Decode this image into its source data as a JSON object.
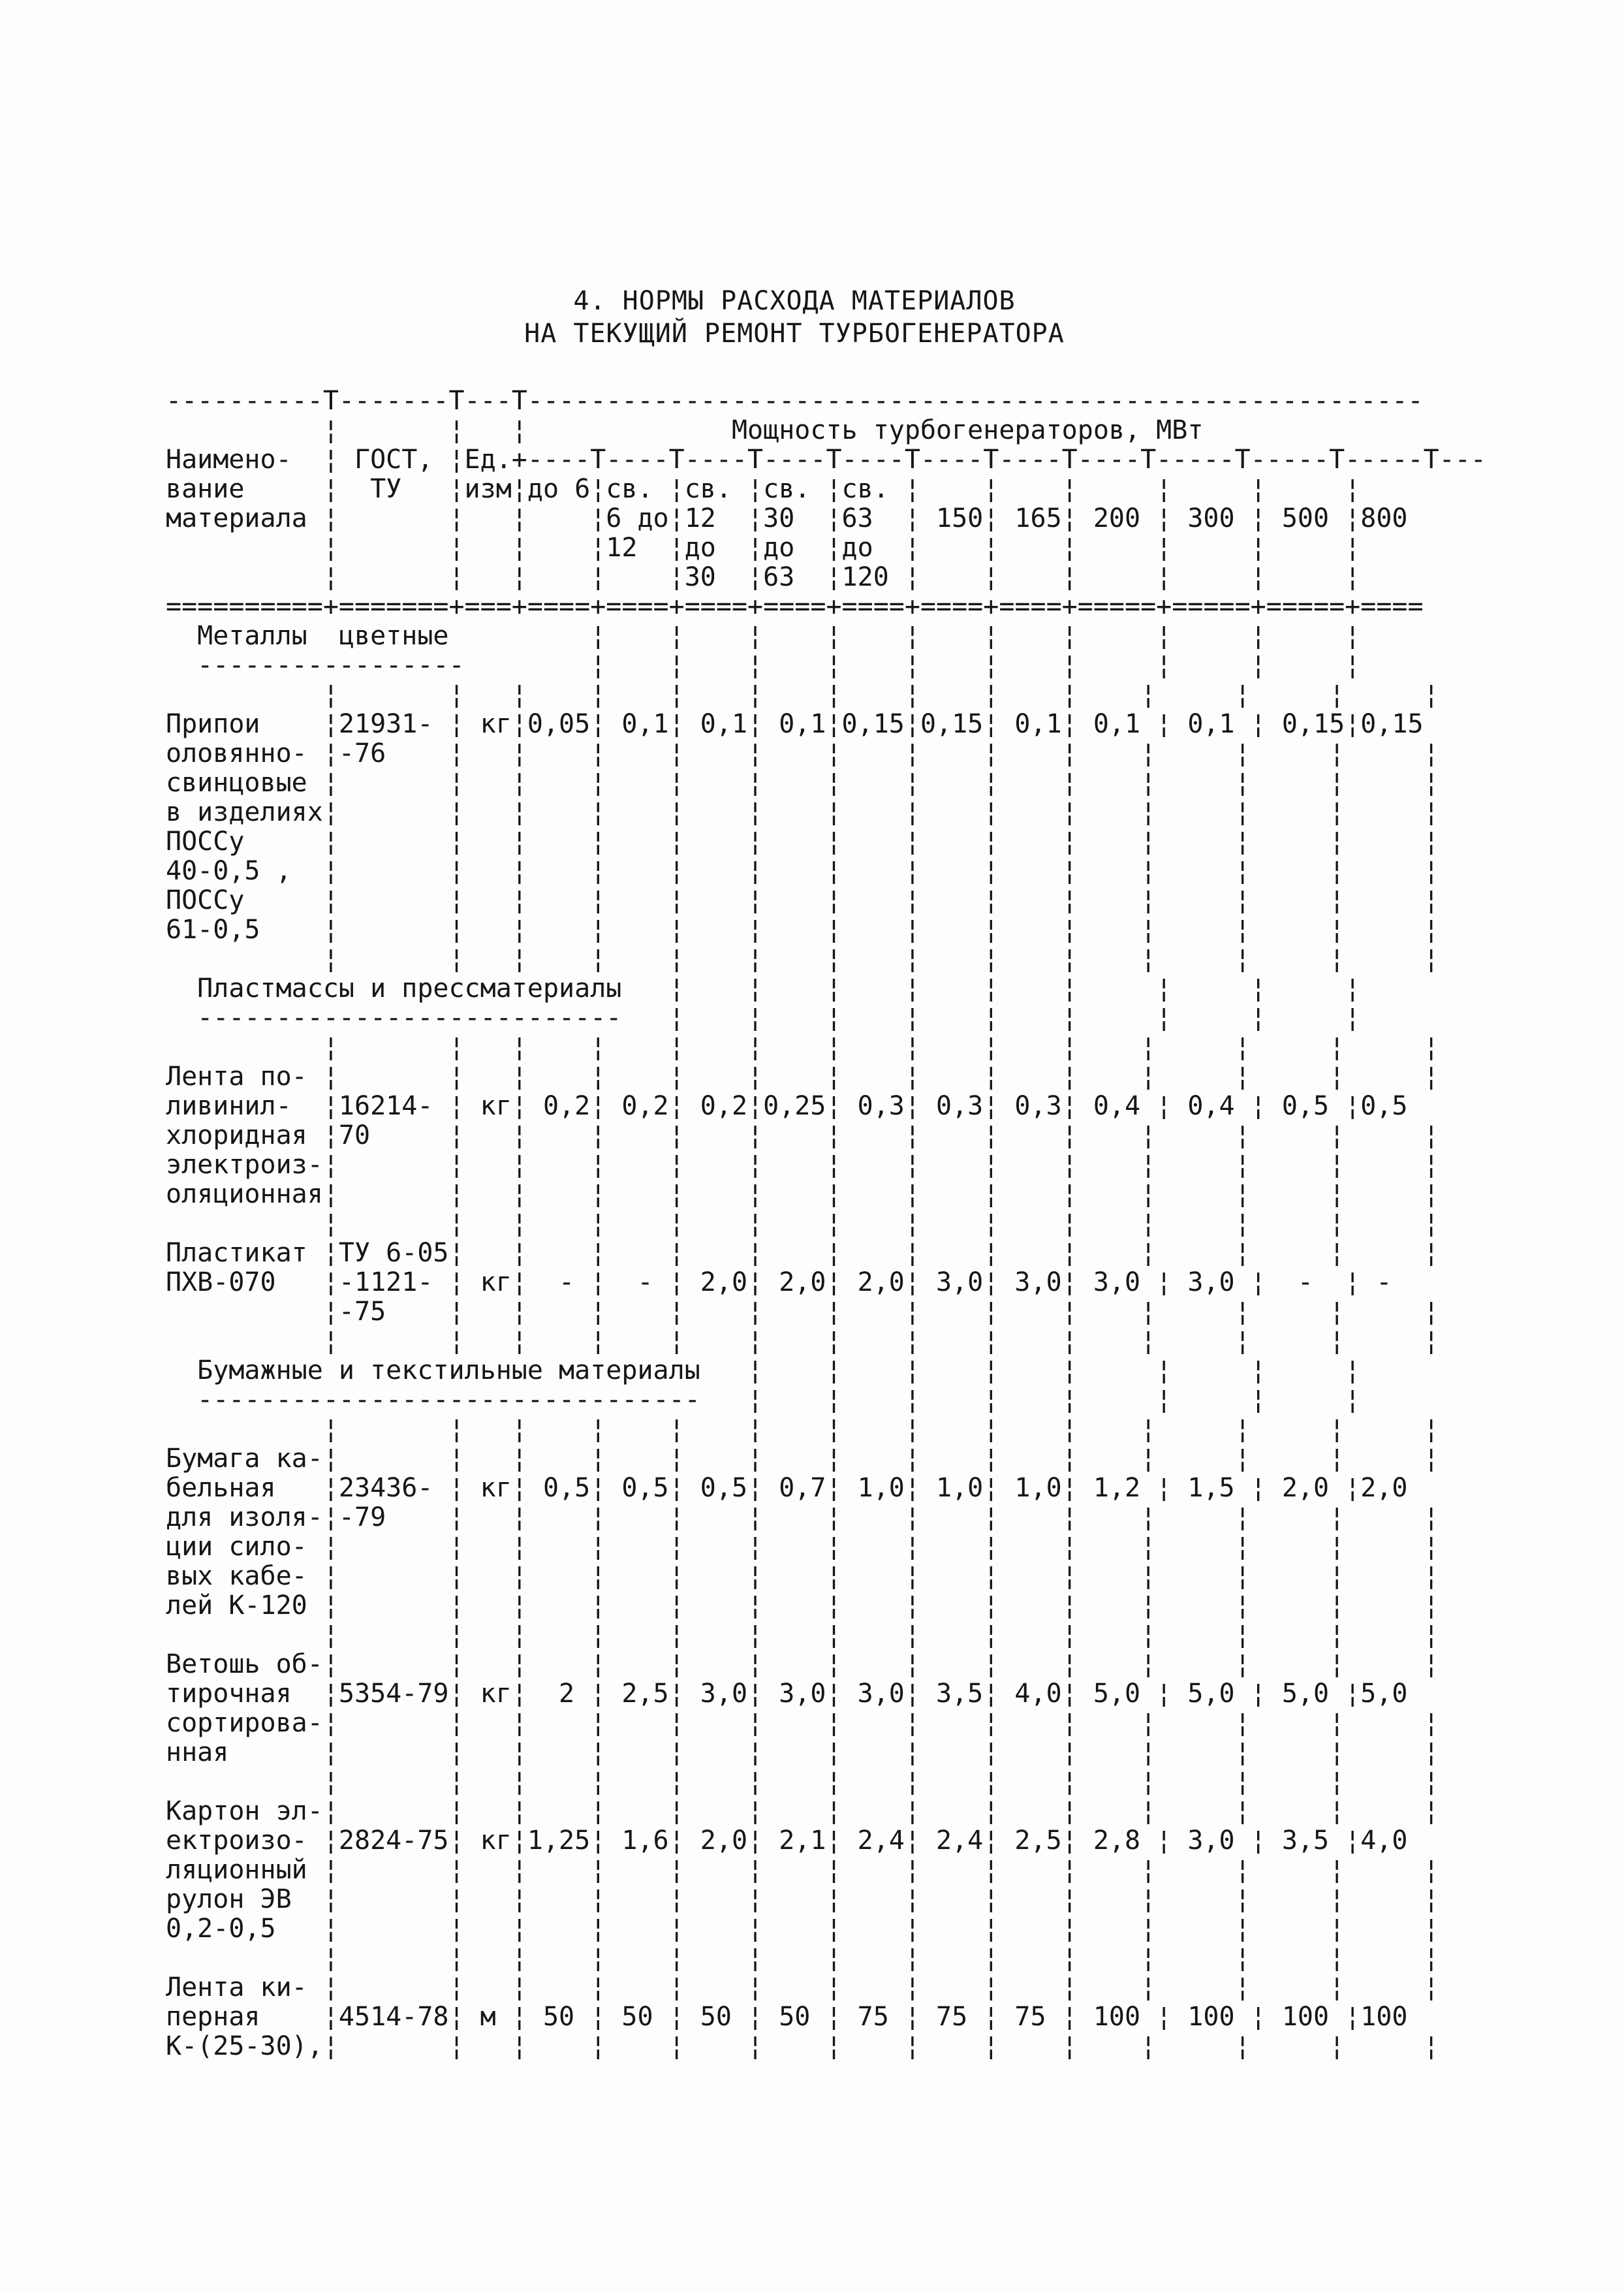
{
  "title": {
    "line1": "4. НОРМЫ РАСХОДА МАТЕРИАЛОВ",
    "line2": "НА ТЕКУЩИЙ РЕМОНТ ТУРБОГЕНЕРАТОРА"
  },
  "table": {
    "power_header": "Мощность турбогенераторов, МВт",
    "columns": [
      "Наименование материала",
      "ГОСТ, ТУ",
      "Ед.изм",
      "до 6",
      "св. 6 до 12",
      "св. 12 до 30",
      "св. 30 до 63",
      "св. 63 до 120",
      "150",
      "165",
      "200",
      "300",
      "500",
      "800"
    ],
    "sections": [
      {
        "title": "Металлы цветные",
        "rows": [
          {
            "name": "Припои оловянно-свинцовые в изделиях ПОССу 40-0,5 , ПОССу 61-0,5",
            "gost": "21931-76",
            "unit": "кг",
            "values": [
              "0,05",
              "0,1",
              "0,1",
              "0,1",
              "0,15",
              "0,15",
              "0,1",
              "0,1",
              "0,1",
              "0,15",
              "0,15"
            ]
          }
        ]
      },
      {
        "title": "Пластмассы и прессматериалы",
        "rows": [
          {
            "name": "Лента поливинилхлоридная электроизоляционная",
            "gost": "16214-70",
            "unit": "кг",
            "values": [
              "0,2",
              "0,2",
              "0,2",
              "0,25",
              "0,3",
              "0,3",
              "0,3",
              "0,4",
              "0,4",
              "0,5",
              "0,5"
            ]
          },
          {
            "name": "Пластикат ПХВ-070",
            "gost": "ТУ 6-05-1121-75",
            "unit": "кг",
            "values": [
              "-",
              "-",
              "2,0",
              "2,0",
              "2,0",
              "3,0",
              "3,0",
              "3,0",
              "3,0",
              "-",
              "-"
            ]
          }
        ]
      },
      {
        "title": "Бумажные и текстильные материалы",
        "rows": [
          {
            "name": "Бумага кабельная для изоляции силовых кабелей К-120",
            "gost": "23436-79",
            "unit": "кг",
            "values": [
              "0,5",
              "0,5",
              "0,5",
              "0,7",
              "1,0",
              "1,0",
              "1,0",
              "1,2",
              "1,5",
              "2,0",
              "2,0"
            ]
          },
          {
            "name": "Ветошь обтирочная сортированная",
            "gost": "5354-79",
            "unit": "кг",
            "values": [
              "2",
              "2,5",
              "3,0",
              "3,0",
              "3,0",
              "3,5",
              "4,0",
              "5,0",
              "5,0",
              "5,0",
              "5,0"
            ]
          },
          {
            "name": "Картон электроизоляционный рулон ЭВ 0,2-0,5",
            "gost": "2824-75",
            "unit": "кг",
            "values": [
              "1,25",
              "1,6",
              "2,0",
              "2,1",
              "2,4",
              "2,4",
              "2,5",
              "2,8",
              "3,0",
              "3,5",
              "4,0"
            ]
          },
          {
            "name": "Лента киперная К-(25-30),",
            "gost": "4514-78",
            "unit": "м",
            "values": [
              "50",
              "50",
              "50",
              "50",
              "75",
              "75",
              "75",
              "100",
              "100",
              "100",
              "100"
            ]
          }
        ]
      }
    ]
  },
  "doc": {
    "lines": [
      "----------T-------T---T---------------------------------------------------------",
      "          ¦       ¦   ¦             Мощность турбогенераторов, МВт",
      "Наимено-  ¦ ГОСТ, ¦Ед.+----T----T----T----T----T----T----T----T-----T-----T-----T---",
      "вание     ¦  ТУ   ¦изм¦до 6¦св. ¦св. ¦св. ¦св. ¦    ¦    ¦     ¦     ¦     ¦",
      "материала ¦       ¦   ¦    ¦6 до¦12  ¦30  ¦63  ¦ 150¦ 165¦ 200 ¦ 300 ¦ 500 ¦800",
      "          ¦       ¦   ¦    ¦12  ¦до  ¦до  ¦до  ¦    ¦    ¦     ¦     ¦     ¦",
      "          ¦       ¦   ¦    ¦    ¦30  ¦63  ¦120 ¦    ¦    ¦     ¦     ¦     ¦",
      "==========+=======+===+====+====+====+====+====+====+====+=====+=====+=====+====",
      "  Металлы  цветные         ¦    ¦    ¦    ¦    ¦    ¦    ¦     ¦     ¦     ¦",
      "  -----------------        ¦    ¦    ¦    ¦    ¦    ¦    ¦     ¦     ¦     ¦",
      "          ¦       ¦   ¦    ¦    ¦    ¦    ¦    ¦    ¦    ¦    ¦     ¦     ¦     ¦",
      "Припои    ¦21931- ¦ кг¦0,05¦ 0,1¦ 0,1¦ 0,1¦0,15¦0,15¦ 0,1¦ 0,1 ¦ 0,1 ¦ 0,15¦0,15",
      "оловянно- ¦-76    ¦   ¦    ¦    ¦    ¦    ¦    ¦    ¦    ¦    ¦     ¦     ¦     ¦",
      "свинцовые ¦       ¦   ¦    ¦    ¦    ¦    ¦    ¦    ¦    ¦    ¦     ¦     ¦     ¦",
      "в изделиях¦       ¦   ¦    ¦    ¦    ¦    ¦    ¦    ¦    ¦    ¦     ¦     ¦     ¦",
      "ПОССу     ¦       ¦   ¦    ¦    ¦    ¦    ¦    ¦    ¦    ¦    ¦     ¦     ¦     ¦",
      "40-0,5 ,  ¦       ¦   ¦    ¦    ¦    ¦    ¦    ¦    ¦    ¦    ¦     ¦     ¦     ¦",
      "ПОССу     ¦       ¦   ¦    ¦    ¦    ¦    ¦    ¦    ¦    ¦    ¦     ¦     ¦     ¦",
      "61-0,5    ¦       ¦   ¦    ¦    ¦    ¦    ¦    ¦    ¦    ¦    ¦     ¦     ¦     ¦",
      "          ¦       ¦   ¦    ¦    ¦    ¦    ¦    ¦    ¦    ¦    ¦     ¦     ¦     ¦",
      "  Пластмассы и прессматериалы   ¦    ¦    ¦    ¦    ¦    ¦     ¦     ¦     ¦",
      "  ---------------------------   ¦    ¦    ¦    ¦    ¦    ¦     ¦     ¦     ¦",
      "          ¦       ¦   ¦    ¦    ¦    ¦    ¦    ¦    ¦    ¦    ¦     ¦     ¦     ¦",
      "Лента по- ¦       ¦   ¦    ¦    ¦    ¦    ¦    ¦    ¦    ¦    ¦     ¦     ¦     ¦",
      "ливинил-  ¦16214- ¦ кг¦ 0,2¦ 0,2¦ 0,2¦0,25¦ 0,3¦ 0,3¦ 0,3¦ 0,4 ¦ 0,4 ¦ 0,5 ¦0,5",
      "хлоридная ¦70     ¦   ¦    ¦    ¦    ¦    ¦    ¦    ¦    ¦    ¦     ¦     ¦     ¦",
      "электроиз-¦       ¦   ¦    ¦    ¦    ¦    ¦    ¦    ¦    ¦    ¦     ¦     ¦     ¦",
      "оляционная¦       ¦   ¦    ¦    ¦    ¦    ¦    ¦    ¦    ¦    ¦     ¦     ¦     ¦",
      "          ¦       ¦   ¦    ¦    ¦    ¦    ¦    ¦    ¦    ¦    ¦     ¦     ¦     ¦",
      "Пластикат ¦ТУ 6-05¦   ¦    ¦    ¦    ¦    ¦    ¦    ¦    ¦    ¦     ¦     ¦     ¦",
      "ПХВ-070   ¦-1121- ¦ кг¦  - ¦  - ¦ 2,0¦ 2,0¦ 2,0¦ 3,0¦ 3,0¦ 3,0 ¦ 3,0 ¦  -  ¦ -",
      "          ¦-75    ¦   ¦    ¦    ¦    ¦    ¦    ¦    ¦    ¦    ¦     ¦     ¦     ¦",
      "          ¦       ¦   ¦    ¦    ¦    ¦    ¦    ¦    ¦    ¦    ¦     ¦     ¦     ¦",
      "  Бумажные и текстильные материалы   ¦    ¦    ¦    ¦    ¦     ¦     ¦     ¦",
      "  --------------------------------   ¦    ¦    ¦    ¦    ¦     ¦     ¦     ¦",
      "          ¦       ¦   ¦    ¦    ¦    ¦    ¦    ¦    ¦    ¦    ¦     ¦     ¦     ¦",
      "Бумага ка-¦       ¦   ¦    ¦    ¦    ¦    ¦    ¦    ¦    ¦    ¦     ¦     ¦     ¦",
      "бельная   ¦23436- ¦ кг¦ 0,5¦ 0,5¦ 0,5¦ 0,7¦ 1,0¦ 1,0¦ 1,0¦ 1,2 ¦ 1,5 ¦ 2,0 ¦2,0",
      "для изоля-¦-79    ¦   ¦    ¦    ¦    ¦    ¦    ¦    ¦    ¦    ¦     ¦     ¦     ¦",
      "ции сило- ¦       ¦   ¦    ¦    ¦    ¦    ¦    ¦    ¦    ¦    ¦     ¦     ¦     ¦",
      "вых кабе- ¦       ¦   ¦    ¦    ¦    ¦    ¦    ¦    ¦    ¦    ¦     ¦     ¦     ¦",
      "лей К-120 ¦       ¦   ¦    ¦    ¦    ¦    ¦    ¦    ¦    ¦    ¦     ¦     ¦     ¦",
      "          ¦       ¦   ¦    ¦    ¦    ¦    ¦    ¦    ¦    ¦    ¦     ¦     ¦     ¦",
      "Ветошь об-¦       ¦   ¦    ¦    ¦    ¦    ¦    ¦    ¦    ¦    ¦     ¦     ¦     ¦",
      "тирочная  ¦5354-79¦ кг¦  2 ¦ 2,5¦ 3,0¦ 3,0¦ 3,0¦ 3,5¦ 4,0¦ 5,0 ¦ 5,0 ¦ 5,0 ¦5,0",
      "сортирова-¦       ¦   ¦    ¦    ¦    ¦    ¦    ¦    ¦    ¦    ¦     ¦     ¦     ¦",
      "нная      ¦       ¦   ¦    ¦    ¦    ¦    ¦    ¦    ¦    ¦    ¦     ¦     ¦     ¦",
      "          ¦       ¦   ¦    ¦    ¦    ¦    ¦    ¦    ¦    ¦    ¦     ¦     ¦     ¦",
      "Картон эл-¦       ¦   ¦    ¦    ¦    ¦    ¦    ¦    ¦    ¦    ¦     ¦     ¦     ¦",
      "ектроизо- ¦2824-75¦ кг¦1,25¦ 1,6¦ 2,0¦ 2,1¦ 2,4¦ 2,4¦ 2,5¦ 2,8 ¦ 3,0 ¦ 3,5 ¦4,0",
      "ляционный ¦       ¦   ¦    ¦    ¦    ¦    ¦    ¦    ¦    ¦    ¦     ¦     ¦     ¦",
      "рулон ЭВ  ¦       ¦   ¦    ¦    ¦    ¦    ¦    ¦    ¦    ¦    ¦     ¦     ¦     ¦",
      "0,2-0,5   ¦       ¦   ¦    ¦    ¦    ¦    ¦    ¦    ¦    ¦    ¦     ¦     ¦     ¦",
      "          ¦       ¦   ¦    ¦    ¦    ¦    ¦    ¦    ¦    ¦    ¦     ¦     ¦     ¦",
      "Лента ки- ¦       ¦   ¦    ¦    ¦    ¦    ¦    ¦    ¦    ¦    ¦     ¦     ¦     ¦",
      "перная    ¦4514-78¦ м ¦ 50 ¦ 50 ¦ 50 ¦ 50 ¦ 75 ¦ 75 ¦ 75 ¦ 100 ¦ 100 ¦ 100 ¦100",
      "К-(25-30),¦       ¦   ¦    ¦    ¦    ¦    ¦    ¦    ¦    ¦    ¦     ¦     ¦     ¦"
    ]
  }
}
